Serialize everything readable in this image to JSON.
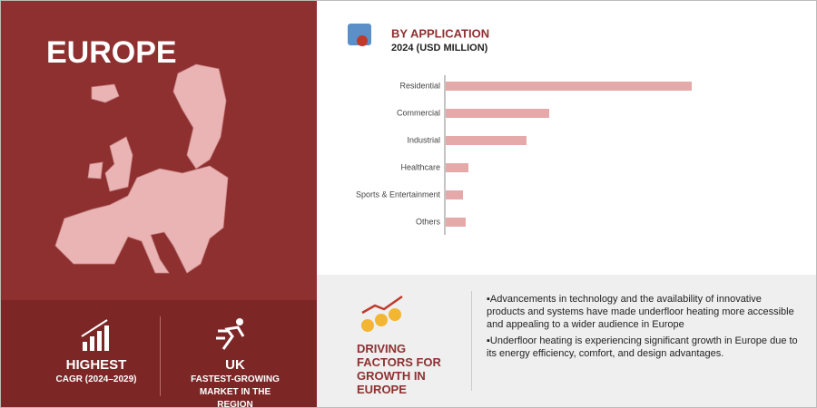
{
  "region": "EUROPE",
  "chart_data": {
    "type": "bar",
    "orientation": "horizontal",
    "title": "BY APPLICATION",
    "subtitle": "2024 (USD MILLION)",
    "categories": [
      "Residential",
      "Commercial",
      "Industrial",
      "Healthcare",
      "Sports & Entertainment",
      "Others"
    ],
    "values": [
      271,
      114,
      89,
      25,
      19,
      22
    ],
    "color": "#e5a9a9",
    "xlim": [
      0,
      300
    ]
  },
  "highlights": [
    {
      "title": "HIGHEST",
      "subtitle": "CAGR (2024–2029)"
    },
    {
      "title": "UK",
      "subtitle": "FASTEST-GROWING MARKET IN THE REGION"
    }
  ],
  "driving_factors": {
    "title": "DRIVING FACTORS FOR GROWTH IN EUROPE",
    "points": [
      "Advancements in technology and the availability of innovative products and systems have made underfloor heating more accessible and appealing to a wider audience in Europe",
      "Underfloor heating is experiencing significant growth in Europe due to its energy efficiency, comfort, and design advantages."
    ]
  }
}
